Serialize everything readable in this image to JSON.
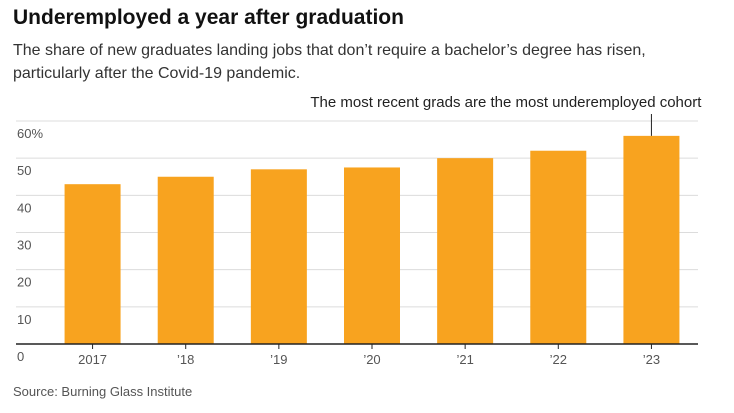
{
  "title": "Underemployed a year after graduation",
  "subtitle": "The share of new graduates landing jobs that don’t require a bachelor’s degree has risen, particularly after the Covid-19 pandemic.",
  "source": "Source: Burning Glass Institute",
  "colors": {
    "bar": "#f8a31f",
    "grid": "#dcdcdc",
    "axis": "#222222"
  },
  "chart_data": {
    "type": "bar",
    "categories": [
      "2017",
      "’18",
      "’19",
      "’20",
      "’21",
      "’22",
      "’23"
    ],
    "values": [
      43,
      45,
      47,
      47.5,
      50,
      52,
      56
    ],
    "ylim": [
      0,
      60
    ],
    "yticks": [
      0,
      10,
      20,
      30,
      40,
      50,
      60
    ],
    "ytick_labels": [
      "0",
      "10",
      "20",
      "30",
      "40",
      "50",
      "60%"
    ],
    "annotation": {
      "text": "The most recent grads are the most underemployed cohort",
      "category_index": 6
    },
    "xlabel": "",
    "ylabel": "",
    "grid": true
  }
}
